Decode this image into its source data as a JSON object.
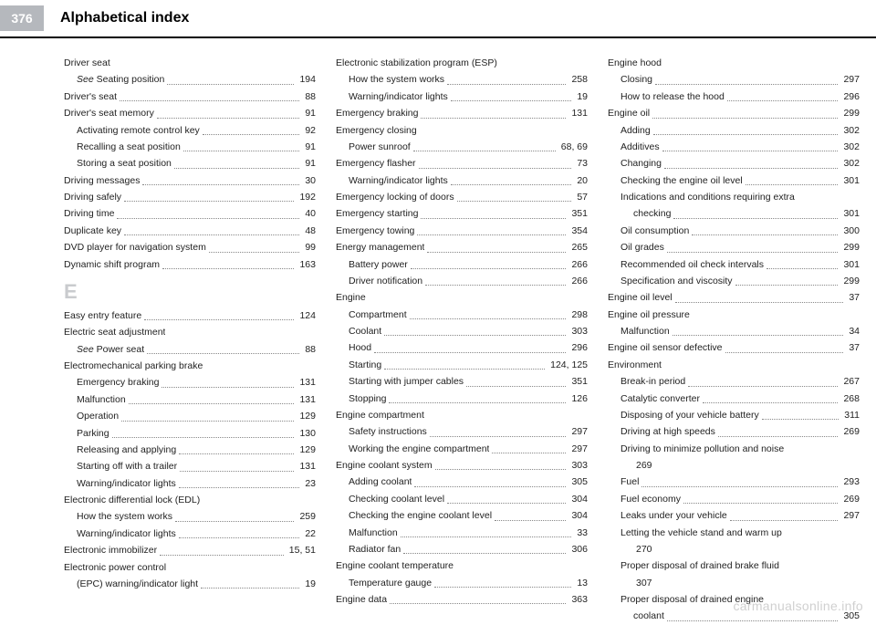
{
  "header": {
    "page_number": "376",
    "title": "Alphabetical index"
  },
  "watermark": "carmanualsonline.info",
  "columns": [
    [
      {
        "type": "group",
        "label": "Driver seat"
      },
      {
        "type": "entry",
        "indent": true,
        "label": "See Seating position",
        "page": "194",
        "italic_prefix": "See "
      },
      {
        "type": "entry",
        "label": "Driver's seat",
        "page": "88"
      },
      {
        "type": "entry",
        "label": "Driver's seat memory",
        "page": "91"
      },
      {
        "type": "entry",
        "indent": true,
        "label": "Activating remote control key",
        "page": "92"
      },
      {
        "type": "entry",
        "indent": true,
        "label": "Recalling a seat position",
        "page": "91"
      },
      {
        "type": "entry",
        "indent": true,
        "label": "Storing a seat position",
        "page": "91"
      },
      {
        "type": "entry",
        "label": "Driving messages",
        "page": "30"
      },
      {
        "type": "entry",
        "label": "Driving safely",
        "page": "192"
      },
      {
        "type": "entry",
        "label": "Driving time",
        "page": "40"
      },
      {
        "type": "entry",
        "label": "Duplicate key",
        "page": "48"
      },
      {
        "type": "entry",
        "label": "DVD player for navigation system",
        "page": "99"
      },
      {
        "type": "entry",
        "label": "Dynamic shift program",
        "page": "163"
      },
      {
        "type": "letter",
        "label": "E"
      },
      {
        "type": "entry",
        "label": "Easy entry feature",
        "page": "124"
      },
      {
        "type": "group",
        "label": "Electric seat adjustment"
      },
      {
        "type": "entry",
        "indent": true,
        "label": "See Power seat",
        "page": "88",
        "italic_prefix": "See "
      },
      {
        "type": "group",
        "label": "Electromechanical parking brake"
      },
      {
        "type": "entry",
        "indent": true,
        "label": "Emergency braking",
        "page": "131"
      },
      {
        "type": "entry",
        "indent": true,
        "label": "Malfunction",
        "page": "131"
      },
      {
        "type": "entry",
        "indent": true,
        "label": "Operation",
        "page": "129"
      },
      {
        "type": "entry",
        "indent": true,
        "label": "Parking",
        "page": "130"
      },
      {
        "type": "entry",
        "indent": true,
        "label": "Releasing and applying",
        "page": "129"
      },
      {
        "type": "entry",
        "indent": true,
        "label": "Starting off with a trailer",
        "page": "131"
      },
      {
        "type": "entry",
        "indent": true,
        "label": "Warning/indicator lights",
        "page": "23"
      },
      {
        "type": "group",
        "label": "Electronic differential lock (EDL)"
      },
      {
        "type": "entry",
        "indent": true,
        "label": "How the system works",
        "page": "259"
      },
      {
        "type": "entry",
        "indent": true,
        "label": "Warning/indicator lights",
        "page": "22"
      },
      {
        "type": "entry",
        "label": "Electronic immobilizer",
        "page": "15, 51"
      },
      {
        "type": "group",
        "label": "Electronic power control"
      },
      {
        "type": "entry",
        "indent": true,
        "label": "(EPC) warning/indicator light",
        "page": "19"
      }
    ],
    [
      {
        "type": "group",
        "label": "Electronic stabilization program (ESP)"
      },
      {
        "type": "entry",
        "indent": true,
        "label": "How the system works",
        "page": "258"
      },
      {
        "type": "entry",
        "indent": true,
        "label": "Warning/indicator lights",
        "page": "19"
      },
      {
        "type": "entry",
        "label": "Emergency braking",
        "page": "131"
      },
      {
        "type": "group",
        "label": "Emergency closing"
      },
      {
        "type": "entry",
        "indent": true,
        "label": "Power sunroof",
        "page": "68, 69"
      },
      {
        "type": "entry",
        "label": "Emergency flasher",
        "page": "73"
      },
      {
        "type": "entry",
        "indent": true,
        "label": "Warning/indicator lights",
        "page": "20"
      },
      {
        "type": "entry",
        "label": "Emergency locking of doors",
        "page": "57"
      },
      {
        "type": "entry",
        "label": "Emergency starting",
        "page": "351"
      },
      {
        "type": "entry",
        "label": "Emergency towing",
        "page": "354"
      },
      {
        "type": "entry",
        "label": "Energy management",
        "page": "265"
      },
      {
        "type": "entry",
        "indent": true,
        "label": "Battery power",
        "page": "266"
      },
      {
        "type": "entry",
        "indent": true,
        "label": "Driver notification",
        "page": "266"
      },
      {
        "type": "group",
        "label": "Engine"
      },
      {
        "type": "entry",
        "indent": true,
        "label": "Compartment",
        "page": "298"
      },
      {
        "type": "entry",
        "indent": true,
        "label": "Coolant",
        "page": "303"
      },
      {
        "type": "entry",
        "indent": true,
        "label": "Hood",
        "page": "296"
      },
      {
        "type": "entry",
        "indent": true,
        "label": "Starting",
        "page": "124, 125"
      },
      {
        "type": "entry",
        "indent": true,
        "label": "Starting with jumper cables",
        "page": "351"
      },
      {
        "type": "entry",
        "indent": true,
        "label": "Stopping",
        "page": "126"
      },
      {
        "type": "group",
        "label": "Engine compartment"
      },
      {
        "type": "entry",
        "indent": true,
        "label": "Safety instructions",
        "page": "297"
      },
      {
        "type": "entry",
        "indent": true,
        "label": "Working the engine compartment",
        "page": "297"
      },
      {
        "type": "entry",
        "label": "Engine coolant system",
        "page": "303"
      },
      {
        "type": "entry",
        "indent": true,
        "label": "Adding coolant",
        "page": "305"
      },
      {
        "type": "entry",
        "indent": true,
        "label": "Checking coolant level",
        "page": "304"
      },
      {
        "type": "entry",
        "indent": true,
        "label": "Checking the engine coolant level",
        "page": "304"
      },
      {
        "type": "entry",
        "indent": true,
        "label": "Malfunction",
        "page": "33"
      },
      {
        "type": "entry",
        "indent": true,
        "label": "Radiator fan",
        "page": "306"
      },
      {
        "type": "group",
        "label": "Engine coolant temperature"
      },
      {
        "type": "entry",
        "indent": true,
        "label": "Temperature gauge",
        "page": "13"
      },
      {
        "type": "entry",
        "label": "Engine data",
        "page": "363"
      }
    ],
    [
      {
        "type": "group",
        "label": "Engine hood"
      },
      {
        "type": "entry",
        "indent": true,
        "label": "Closing",
        "page": "297"
      },
      {
        "type": "entry",
        "indent": true,
        "label": "How to release the hood",
        "page": "296"
      },
      {
        "type": "entry",
        "label": "Engine oil",
        "page": "299"
      },
      {
        "type": "entry",
        "indent": true,
        "label": "Adding",
        "page": "302"
      },
      {
        "type": "entry",
        "indent": true,
        "label": "Additives",
        "page": "302"
      },
      {
        "type": "entry",
        "indent": true,
        "label": "Changing",
        "page": "302"
      },
      {
        "type": "entry",
        "indent": true,
        "label": "Checking the engine oil level",
        "page": "301"
      },
      {
        "type": "multiline",
        "indent": true,
        "label": "Indications and conditions requiring extra checking",
        "page": "301"
      },
      {
        "type": "entry",
        "indent": true,
        "label": "Oil consumption",
        "page": "300"
      },
      {
        "type": "entry",
        "indent": true,
        "label": "Oil grades",
        "page": "299"
      },
      {
        "type": "entry",
        "indent": true,
        "label": "Recommended oil check intervals",
        "page": "301"
      },
      {
        "type": "entry",
        "indent": true,
        "label": "Specification and viscosity",
        "page": "299"
      },
      {
        "type": "entry",
        "label": "Engine oil level",
        "page": "37"
      },
      {
        "type": "group",
        "label": "Engine oil pressure"
      },
      {
        "type": "entry",
        "indent": true,
        "label": "Malfunction",
        "page": "34"
      },
      {
        "type": "entry",
        "label": "Engine oil sensor defective",
        "page": "37"
      },
      {
        "type": "group",
        "label": "Environment"
      },
      {
        "type": "entry",
        "indent": true,
        "label": "Break-in period",
        "page": "267"
      },
      {
        "type": "entry",
        "indent": true,
        "label": "Catalytic converter",
        "page": "268"
      },
      {
        "type": "entry",
        "indent": true,
        "label": "Disposing of your vehicle battery",
        "page": "311"
      },
      {
        "type": "entry",
        "indent": true,
        "label": "Driving at high speeds",
        "page": "269"
      },
      {
        "type": "multiline",
        "indent": true,
        "label": "Driving to minimize pollution and noise",
        "page": "269",
        "page_below": true
      },
      {
        "type": "entry",
        "indent": true,
        "label": "Fuel",
        "page": "293"
      },
      {
        "type": "entry",
        "indent": true,
        "label": "Fuel economy",
        "page": "269"
      },
      {
        "type": "entry",
        "indent": true,
        "label": "Leaks under your vehicle",
        "page": "297"
      },
      {
        "type": "multiline",
        "indent": true,
        "label": "Letting the vehicle stand and warm up",
        "page": "270",
        "page_below": true
      },
      {
        "type": "multiline",
        "indent": true,
        "label": "Proper disposal of drained brake fluid",
        "page": "307",
        "page_below": true
      },
      {
        "type": "multiline",
        "indent": true,
        "label": "Proper disposal of drained engine coolant",
        "page": "305"
      }
    ]
  ]
}
